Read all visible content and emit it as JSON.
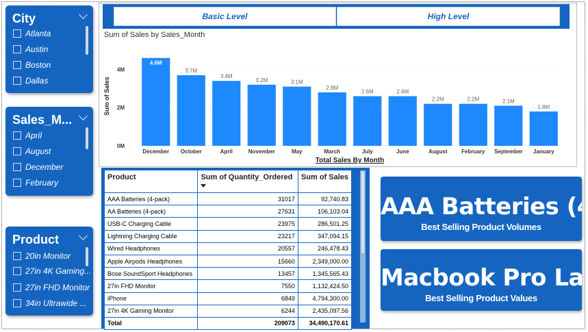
{
  "slicers": [
    {
      "title": "City",
      "items": [
        "Atlanta",
        "Austin",
        "Boston",
        "Dallas"
      ]
    },
    {
      "title": "Sales_M...",
      "items": [
        "April",
        "August",
        "December",
        "February"
      ]
    },
    {
      "title": "Product",
      "items": [
        "20in Monitor",
        "27in 4K Gaming...",
        "27in FHD Monitor",
        "34in Ultrawide ..."
      ]
    }
  ],
  "level_buttons": {
    "basic": "Basic Level",
    "high": "High Level"
  },
  "chart_data": {
    "type": "bar",
    "title": "Sum of Sales by Sales_Month",
    "xlabel": "Total Sales By Month",
    "ylabel": "Sum of Sales",
    "categories": [
      "December",
      "October",
      "April",
      "November",
      "May",
      "March",
      "July",
      "June",
      "August",
      "February",
      "September",
      "January"
    ],
    "values": [
      4.6,
      3.7,
      3.4,
      3.2,
      3.1,
      2.8,
      2.6,
      2.6,
      2.2,
      2.2,
      2.1,
      1.8
    ],
    "data_labels": [
      "4.6M",
      "3.7M",
      "3.4M",
      "3.2M",
      "3.1M",
      "2.8M",
      "2.6M",
      "2.6M",
      "2.2M",
      "2.2M",
      "2.1M",
      "1.8M"
    ],
    "yticks": [
      0,
      2,
      4
    ],
    "ytick_labels": [
      "0M",
      "2M",
      "4M"
    ],
    "ylim": [
      0,
      5.2
    ],
    "units": "millions",
    "bar_color": "#1e88ff",
    "grid": true
  },
  "table": {
    "headers": [
      "Product",
      "Sum of Quantity_Ordered",
      "Sum of Sales"
    ],
    "rows": [
      [
        "AAA Batteries (4-pack)",
        "31017",
        "92,740.83"
      ],
      [
        "AA Batteries (4-pack)",
        "27631",
        "106,103.04"
      ],
      [
        "USB-C Charging Cable",
        "23975",
        "286,501.25"
      ],
      [
        "Lightning Charging Cable",
        "23217",
        "347,094.15"
      ],
      [
        "Wired Headphones",
        "20557",
        "246,478.43"
      ],
      [
        "Apple Airpods Headphones",
        "15660",
        "2,349,000.00"
      ],
      [
        "Bose SoundSport Headphones",
        "13457",
        "1,345,565.43"
      ],
      [
        "27in FHD Monitor",
        "7550",
        "1,132,424.50"
      ],
      [
        "iPhone",
        "6849",
        "4,794,300.00"
      ],
      [
        "27in 4K Gaming Monitor",
        "6244",
        "2,435,097.56"
      ]
    ],
    "total": [
      "Total",
      "209073",
      "34,490,170.61"
    ]
  },
  "cards": [
    {
      "value": "AAA Batteries (4...",
      "label": "Best Selling Product Volumes"
    },
    {
      "value": "Macbook Pro La...",
      "label": "Best Selling Product Values"
    }
  ],
  "colors": {
    "accent": "#1565c0",
    "bar": "#1e88ff",
    "background": "#ffffff"
  }
}
